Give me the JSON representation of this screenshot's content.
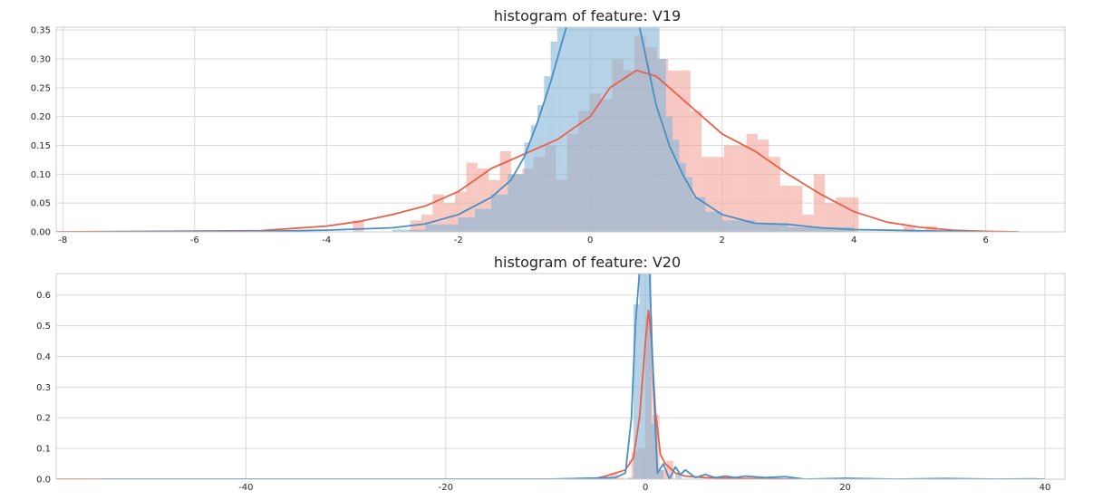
{
  "chart_data": [
    {
      "type": "histogram",
      "title": "histogram of feature: V19",
      "xlabel": "",
      "ylabel": "",
      "xlim": [
        -8.1,
        7.2
      ],
      "ylim": [
        0,
        0.355
      ],
      "grid": true,
      "legend": "none",
      "xticks": [
        "-8",
        "-6",
        "-4",
        "-2",
        "0",
        "2",
        "4",
        "6"
      ],
      "xtick_values": [
        -8,
        -6,
        -4,
        -2,
        0,
        2,
        4,
        6
      ],
      "yticks": [
        "0.00",
        "0.05",
        "0.10",
        "0.15",
        "0.20",
        "0.25",
        "0.30",
        "0.35"
      ],
      "ytick_values": [
        0,
        0.05,
        0.1,
        0.15,
        0.2,
        0.25,
        0.3,
        0.35
      ],
      "series": [
        {
          "color": "#e8604c",
          "fill_color": "#f2a89c",
          "bins": [
            {
              "x0": -3.6,
              "x1": -3.43,
              "y": 0.02
            },
            {
              "x0": -2.73,
              "x1": -2.56,
              "y": 0.02
            },
            {
              "x0": -2.56,
              "x1": -2.39,
              "y": 0.03
            },
            {
              "x0": -2.39,
              "x1": -2.22,
              "y": 0.065
            },
            {
              "x0": -2.22,
              "x1": -2.05,
              "y": 0.05
            },
            {
              "x0": -2.05,
              "x1": -1.88,
              "y": 0.07
            },
            {
              "x0": -1.88,
              "x1": -1.71,
              "y": 0.12
            },
            {
              "x0": -1.71,
              "x1": -1.54,
              "y": 0.11
            },
            {
              "x0": -1.54,
              "x1": -1.37,
              "y": 0.09
            },
            {
              "x0": -1.37,
              "x1": -1.2,
              "y": 0.14
            },
            {
              "x0": -1.2,
              "x1": -1.03,
              "y": 0.1
            },
            {
              "x0": -1.03,
              "x1": -0.86,
              "y": 0.11
            },
            {
              "x0": -0.86,
              "x1": -0.69,
              "y": 0.13
            },
            {
              "x0": -0.69,
              "x1": -0.52,
              "y": 0.15
            },
            {
              "x0": -0.52,
              "x1": -0.35,
              "y": 0.09
            },
            {
              "x0": -0.35,
              "x1": -0.18,
              "y": 0.17
            },
            {
              "x0": -0.18,
              "x1": -0.01,
              "y": 0.21
            },
            {
              "x0": -0.01,
              "x1": 0.16,
              "y": 0.24
            },
            {
              "x0": 0.16,
              "x1": 0.33,
              "y": 0.23
            },
            {
              "x0": 0.33,
              "x1": 0.5,
              "y": 0.3
            },
            {
              "x0": 0.5,
              "x1": 0.67,
              "y": 0.28
            },
            {
              "x0": 0.67,
              "x1": 0.84,
              "y": 0.34
            },
            {
              "x0": 0.84,
              "x1": 1.01,
              "y": 0.32
            },
            {
              "x0": 1.01,
              "x1": 1.18,
              "y": 0.3
            },
            {
              "x0": 1.18,
              "x1": 1.35,
              "y": 0.28
            },
            {
              "x0": 1.35,
              "x1": 1.52,
              "y": 0.28
            },
            {
              "x0": 1.52,
              "x1": 1.69,
              "y": 0.21
            },
            {
              "x0": 1.69,
              "x1": 1.86,
              "y": 0.13
            },
            {
              "x0": 1.86,
              "x1": 2.03,
              "y": 0.13
            },
            {
              "x0": 2.03,
              "x1": 2.2,
              "y": 0.15
            },
            {
              "x0": 2.2,
              "x1": 2.37,
              "y": 0.15
            },
            {
              "x0": 2.37,
              "x1": 2.54,
              "y": 0.17
            },
            {
              "x0": 2.54,
              "x1": 2.71,
              "y": 0.16
            },
            {
              "x0": 2.71,
              "x1": 2.88,
              "y": 0.13
            },
            {
              "x0": 2.88,
              "x1": 3.05,
              "y": 0.08
            },
            {
              "x0": 3.05,
              "x1": 3.22,
              "y": 0.08
            },
            {
              "x0": 3.22,
              "x1": 3.39,
              "y": 0.03
            },
            {
              "x0": 3.39,
              "x1": 3.56,
              "y": 0.1
            },
            {
              "x0": 3.56,
              "x1": 3.73,
              "y": 0.05
            },
            {
              "x0": 3.73,
              "x1": 3.9,
              "y": 0.06
            },
            {
              "x0": 3.9,
              "x1": 4.07,
              "y": 0.06
            },
            {
              "x0": 4.75,
              "x1": 4.92,
              "y": 0.01
            },
            {
              "x0": 5.09,
              "x1": 5.26,
              "y": 0.01
            }
          ],
          "kde": [
            [
              -8.1,
              0
            ],
            [
              -5,
              0.002
            ],
            [
              -4,
              0.01
            ],
            [
              -3.5,
              0.018
            ],
            [
              -3,
              0.03
            ],
            [
              -2.5,
              0.045
            ],
            [
              -2,
              0.07
            ],
            [
              -1.5,
              0.11
            ],
            [
              -1,
              0.135
            ],
            [
              -0.5,
              0.16
            ],
            [
              0,
              0.2
            ],
            [
              0.3,
              0.25
            ],
            [
              0.7,
              0.28
            ],
            [
              1,
              0.27
            ],
            [
              1.5,
              0.22
            ],
            [
              2,
              0.17
            ],
            [
              2.5,
              0.14
            ],
            [
              3,
              0.1
            ],
            [
              3.5,
              0.065
            ],
            [
              4,
              0.035
            ],
            [
              4.5,
              0.017
            ],
            [
              5,
              0.008
            ],
            [
              5.5,
              0.003
            ],
            [
              6,
              0.001
            ],
            [
              6.5,
              0
            ]
          ]
        },
        {
          "color": "#4a8fc4",
          "fill_color": "#87b7d6",
          "bins": [
            {
              "x0": -3.0,
              "x1": -2.5,
              "y": 0.004
            },
            {
              "x0": -2.5,
              "x1": -2.0,
              "y": 0.013
            },
            {
              "x0": -2.0,
              "x1": -1.75,
              "y": 0.025
            },
            {
              "x0": -1.75,
              "x1": -1.5,
              "y": 0.04
            },
            {
              "x0": -1.5,
              "x1": -1.25,
              "y": 0.065
            },
            {
              "x0": -1.25,
              "x1": -1.0,
              "y": 0.1
            },
            {
              "x0": -1.0,
              "x1": -0.9,
              "y": 0.155
            },
            {
              "x0": -0.9,
              "x1": -0.8,
              "y": 0.185
            },
            {
              "x0": -0.8,
              "x1": -0.7,
              "y": 0.22
            },
            {
              "x0": -0.7,
              "x1": -0.6,
              "y": 0.27
            },
            {
              "x0": -0.6,
              "x1": -0.5,
              "y": 0.33
            },
            {
              "x0": -0.5,
              "x1": -0.4,
              "y": 0.37
            },
            {
              "x0": -0.4,
              "x1": 1.05,
              "y": 0.38
            },
            {
              "x0": 1.05,
              "x1": 1.15,
              "y": 0.3
            },
            {
              "x0": 1.15,
              "x1": 1.25,
              "y": 0.2
            },
            {
              "x0": 1.25,
              "x1": 1.35,
              "y": 0.16
            },
            {
              "x0": 1.35,
              "x1": 1.45,
              "y": 0.12
            },
            {
              "x0": 1.45,
              "x1": 1.55,
              "y": 0.095
            },
            {
              "x0": 1.55,
              "x1": 1.75,
              "y": 0.06
            },
            {
              "x0": 1.75,
              "x1": 2.0,
              "y": 0.035
            },
            {
              "x0": 2.0,
              "x1": 2.5,
              "y": 0.02
            },
            {
              "x0": 2.5,
              "x1": 3.0,
              "y": 0.015
            },
            {
              "x0": 3.0,
              "x1": 4.0,
              "y": 0.008
            }
          ],
          "kde": [
            [
              -7.4,
              0
            ],
            [
              -5,
              0.001
            ],
            [
              -4,
              0.003
            ],
            [
              -3,
              0.007
            ],
            [
              -2.5,
              0.014
            ],
            [
              -2,
              0.03
            ],
            [
              -1.5,
              0.06
            ],
            [
              -1.2,
              0.09
            ],
            [
              -1,
              0.13
            ],
            [
              -0.8,
              0.19
            ],
            [
              -0.6,
              0.26
            ],
            [
              -0.4,
              0.34
            ],
            [
              -0.3,
              0.38
            ],
            [
              0,
              0.42
            ],
            [
              0.2,
              0.43
            ],
            [
              0.5,
              0.42
            ],
            [
              0.7,
              0.38
            ],
            [
              0.85,
              0.3
            ],
            [
              1,
              0.22
            ],
            [
              1.2,
              0.15
            ],
            [
              1.4,
              0.1
            ],
            [
              1.6,
              0.06
            ],
            [
              2,
              0.03
            ],
            [
              2.5,
              0.015
            ],
            [
              3,
              0.013
            ],
            [
              3.5,
              0.007
            ],
            [
              4,
              0.004
            ],
            [
              5,
              0.002
            ],
            [
              6,
              0
            ]
          ]
        }
      ]
    },
    {
      "type": "histogram",
      "title": "histogram of feature: V20",
      "xlabel": "",
      "ylabel": "",
      "xlim": [
        -59,
        42
      ],
      "ylim": [
        0,
        0.67
      ],
      "grid": true,
      "legend": "none",
      "xticks": [
        "-40",
        "-20",
        "0",
        "20",
        "40"
      ],
      "xtick_values": [
        -40,
        -20,
        0,
        20,
        40
      ],
      "yticks": [
        "0.0",
        "0.1",
        "0.2",
        "0.3",
        "0.4",
        "0.5",
        "0.6"
      ],
      "ytick_values": [
        0,
        0.1,
        0.2,
        0.3,
        0.4,
        0.5,
        0.6
      ],
      "series": [
        {
          "color": "#e8604c",
          "fill_color": "#f2a89c",
          "bins": [
            {
              "x0": -3.5,
              "x1": -2.8,
              "y": 0.02
            },
            {
              "x0": -2.8,
              "x1": -2.1,
              "y": 0.005
            },
            {
              "x0": -1.4,
              "x1": -0.7,
              "y": 0.09
            },
            {
              "x0": -0.7,
              "x1": 0.0,
              "y": 0.1
            },
            {
              "x0": 0.0,
              "x1": 0.7,
              "y": 0.53
            },
            {
              "x0": 0.7,
              "x1": 1.4,
              "y": 0.21
            },
            {
              "x0": 1.4,
              "x1": 2.1,
              "y": 0.03
            },
            {
              "x0": 2.1,
              "x1": 2.8,
              "y": 0.06
            }
          ],
          "kde": [
            [
              -59,
              0
            ],
            [
              -8,
              0
            ],
            [
              -5,
              0.002
            ],
            [
              -4,
              0.01
            ],
            [
              -3,
              0.02
            ],
            [
              -2,
              0.03
            ],
            [
              -1.2,
              0.07
            ],
            [
              -0.6,
              0.2
            ],
            [
              0,
              0.45
            ],
            [
              0.3,
              0.55
            ],
            [
              0.6,
              0.45
            ],
            [
              1,
              0.22
            ],
            [
              1.5,
              0.08
            ],
            [
              2,
              0.05
            ],
            [
              3,
              0.02
            ],
            [
              4,
              0.01
            ],
            [
              6,
              0.005
            ],
            [
              9,
              0.003
            ],
            [
              12,
              0.001
            ],
            [
              15,
              0
            ]
          ]
        },
        {
          "color": "#4a8fc4",
          "fill_color": "#87b7d6",
          "bins": [
            {
              "x0": -1.8,
              "x1": -1.2,
              "y": 0.005
            },
            {
              "x0": -1.2,
              "x1": -0.6,
              "y": 0.57
            },
            {
              "x0": -0.6,
              "x1": 0.0,
              "y": 0.72
            },
            {
              "x0": 0.0,
              "x1": 0.6,
              "y": 0.72
            },
            {
              "x0": 0.6,
              "x1": 1.2,
              "y": 0.18
            },
            {
              "x0": 1.2,
              "x1": 1.8,
              "y": 0.03
            },
            {
              "x0": 3.0,
              "x1": 3.6,
              "y": 0.02
            }
          ],
          "kde": [
            [
              -54.5,
              0
            ],
            [
              -10,
              0
            ],
            [
              -3,
              0.005
            ],
            [
              -2,
              0.02
            ],
            [
              -1.4,
              0.2
            ],
            [
              -1,
              0.5
            ],
            [
              -0.5,
              0.72
            ],
            [
              0,
              0.75
            ],
            [
              0.4,
              0.68
            ],
            [
              0.8,
              0.3
            ],
            [
              1.2,
              0.02
            ],
            [
              1.8,
              0.05
            ],
            [
              2.4,
              0
            ],
            [
              3,
              0.04
            ],
            [
              3.5,
              0.015
            ],
            [
              4,
              0.03
            ],
            [
              5,
              0.005
            ],
            [
              6,
              0.015
            ],
            [
              7,
              0.005
            ],
            [
              8,
              0.01
            ],
            [
              9,
              0.005
            ],
            [
              10,
              0.01
            ],
            [
              12,
              0.005
            ],
            [
              14,
              0.008
            ],
            [
              16,
              0
            ],
            [
              20,
              0.003
            ],
            [
              25,
              0
            ],
            [
              30,
              0.002
            ],
            [
              35,
              0
            ],
            [
              39,
              0.001
            ],
            [
              40,
              0
            ]
          ]
        }
      ]
    }
  ]
}
